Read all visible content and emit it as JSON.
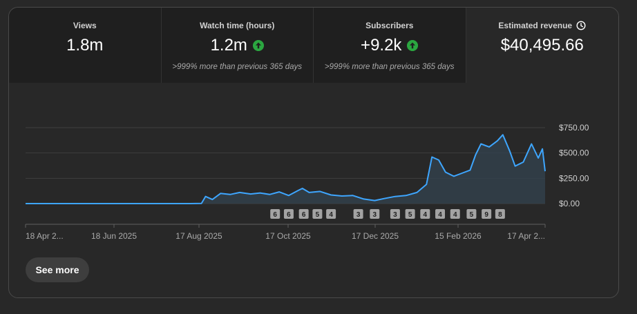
{
  "metrics": [
    {
      "label": "Views",
      "value": "1.8m",
      "sub": "",
      "trend": "none"
    },
    {
      "label": "Watch time (hours)",
      "value": "1.2m",
      "sub": ">999% more than previous 365 days",
      "trend": "up"
    },
    {
      "label": "Subscribers",
      "value": "+9.2k",
      "sub": ">999% more than previous 365 days",
      "trend": "up"
    },
    {
      "label": "Estimated revenue",
      "value": "$40,495.66",
      "sub": "",
      "trend": "none",
      "icon": "clock-icon"
    }
  ],
  "chart_data": {
    "type": "area",
    "y_ticks": [
      "$750.00",
      "$500.00",
      "$250.00",
      "$0.00"
    ],
    "ylim": [
      0,
      750
    ],
    "x_ticks": [
      "18 Apr 2...",
      "18 Jun 2025",
      "17 Aug 2025",
      "17 Oct 2025",
      "17 Dec 2025",
      "15 Feb 2026",
      "17 Apr 2..."
    ],
    "series": [
      {
        "color": "#3ea6ff",
        "points": [
          [
            "2025-04-18",
            0
          ],
          [
            "2025-05-18",
            0
          ],
          [
            "2025-06-18",
            0
          ],
          [
            "2025-07-18",
            0
          ],
          [
            "2025-08-17",
            0
          ],
          [
            "2025-08-25",
            2
          ],
          [
            "2025-08-28",
            70
          ],
          [
            "2025-09-02",
            40
          ],
          [
            "2025-09-08",
            100
          ],
          [
            "2025-09-15",
            90
          ],
          [
            "2025-09-22",
            110
          ],
          [
            "2025-09-30",
            95
          ],
          [
            "2025-10-07",
            105
          ],
          [
            "2025-10-14",
            90
          ],
          [
            "2025-10-21",
            115
          ],
          [
            "2025-10-28",
            80
          ],
          [
            "2025-11-04",
            130
          ],
          [
            "2025-11-07",
            150
          ],
          [
            "2025-11-12",
            110
          ],
          [
            "2025-11-20",
            120
          ],
          [
            "2025-11-28",
            85
          ],
          [
            "2025-12-06",
            75
          ],
          [
            "2025-12-14",
            80
          ],
          [
            "2025-12-22",
            45
          ],
          [
            "2025-12-30",
            30
          ],
          [
            "2026-01-06",
            50
          ],
          [
            "2026-01-14",
            70
          ],
          [
            "2026-01-22",
            80
          ],
          [
            "2026-01-30",
            110
          ],
          [
            "2026-02-06",
            190
          ],
          [
            "2026-02-10",
            460
          ],
          [
            "2026-02-15",
            430
          ],
          [
            "2026-02-20",
            310
          ],
          [
            "2026-02-26",
            270
          ],
          [
            "2026-03-04",
            300
          ],
          [
            "2026-03-10",
            330
          ],
          [
            "2026-03-14",
            480
          ],
          [
            "2026-03-18",
            590
          ],
          [
            "2026-03-24",
            560
          ],
          [
            "2026-03-30",
            620
          ],
          [
            "2026-04-03",
            680
          ],
          [
            "2026-04-08",
            520
          ],
          [
            "2026-04-12",
            370
          ],
          [
            "2026-04-18",
            410
          ],
          [
            "2026-04-24",
            590
          ],
          [
            "2026-04-29",
            450
          ],
          [
            "2026-05-02",
            540
          ],
          [
            "2026-05-04",
            320
          ]
        ]
      }
    ],
    "markers": [
      {
        "date": "2025-10-18",
        "label": "6"
      },
      {
        "date": "2025-10-28",
        "label": "6"
      },
      {
        "date": "2025-11-08",
        "label": "6"
      },
      {
        "date": "2025-11-18",
        "label": "5"
      },
      {
        "date": "2025-11-28",
        "label": "4"
      },
      {
        "date": "2025-12-18",
        "label": "3"
      },
      {
        "date": "2025-12-30",
        "label": "3"
      },
      {
        "date": "2026-01-14",
        "label": "3"
      },
      {
        "date": "2026-01-25",
        "label": "5"
      },
      {
        "date": "2026-02-05",
        "label": "4"
      },
      {
        "date": "2026-02-16",
        "label": "4"
      },
      {
        "date": "2026-02-27",
        "label": "4"
      },
      {
        "date": "2026-03-11",
        "label": "5"
      },
      {
        "date": "2026-03-22",
        "label": "9"
      },
      {
        "date": "2026-04-01",
        "label": "8"
      }
    ]
  },
  "see_more_label": "See more",
  "colors": {
    "line": "#3ea6ff",
    "trend_up": "#2ba640",
    "gridline": "#3f3f3f",
    "axis_text": "#aaaaaa"
  }
}
